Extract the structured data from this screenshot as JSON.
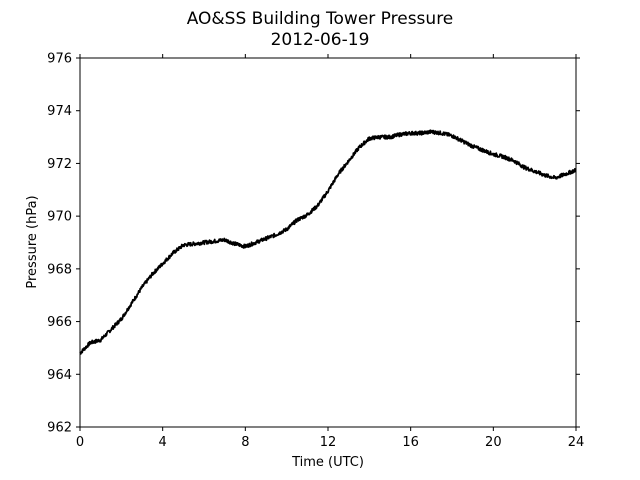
{
  "chart_data": {
    "type": "line",
    "title": "AO&SS Building Tower Pressure",
    "subtitle": "2012-06-19",
    "xlabel": "Time (UTC)",
    "ylabel": "Pressure (hPa)",
    "xlim": [
      0,
      24
    ],
    "ylim": [
      962,
      976
    ],
    "xticks": [
      0,
      4,
      8,
      12,
      16,
      20,
      24
    ],
    "yticks": [
      962,
      964,
      966,
      968,
      970,
      972,
      974,
      976
    ],
    "grid": false,
    "legend": "none",
    "line_color": "#000000",
    "series": [
      {
        "x": [
          0,
          0.5,
          1,
          1.5,
          2,
          2.5,
          3,
          3.5,
          4,
          4.5,
          5,
          5.5,
          6,
          6.5,
          7,
          7.5,
          8,
          8.5,
          9,
          9.5,
          10,
          10.5,
          11,
          11.5,
          12,
          12.5,
          13,
          13.5,
          14,
          14.5,
          15,
          15.5,
          16,
          16.5,
          17,
          17.5,
          18,
          18.5,
          19,
          19.5,
          20,
          20.5,
          21,
          21.5,
          22,
          22.5,
          23,
          23.5,
          24
        ],
        "y": [
          964.8,
          965.2,
          965.3,
          965.7,
          966.1,
          966.7,
          967.3,
          967.8,
          968.2,
          968.6,
          968.9,
          968.95,
          969.0,
          969.05,
          969.1,
          968.95,
          968.85,
          969.0,
          969.15,
          969.3,
          969.5,
          969.85,
          970.05,
          970.4,
          970.95,
          971.6,
          972.1,
          972.6,
          972.95,
          973.0,
          973.0,
          973.1,
          973.15,
          973.15,
          973.2,
          973.15,
          973.05,
          972.85,
          972.65,
          972.5,
          972.35,
          972.25,
          972.1,
          971.85,
          971.7,
          971.55,
          971.45,
          971.6,
          971.75
        ]
      }
    ]
  }
}
